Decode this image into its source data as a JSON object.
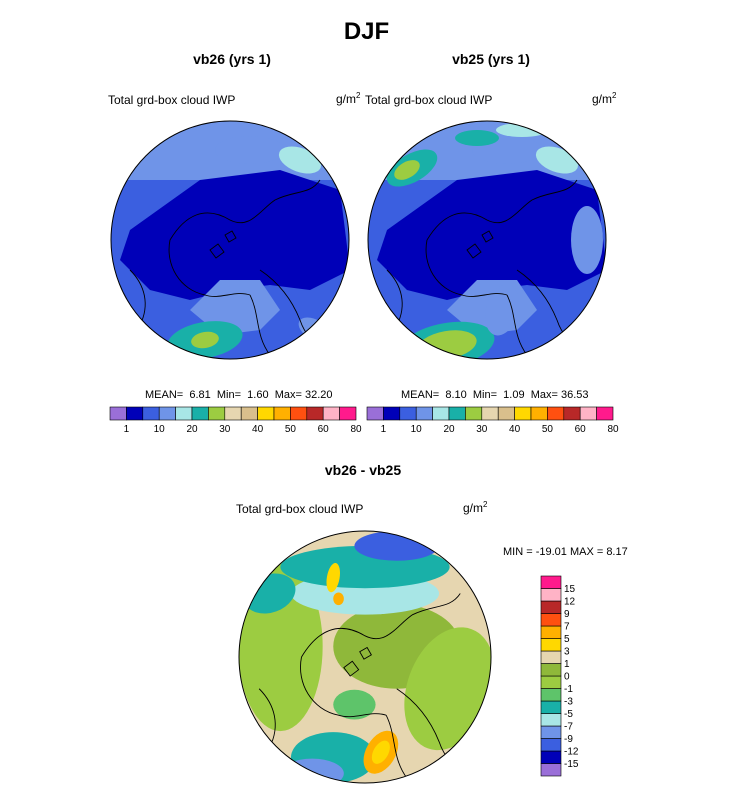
{
  "figure": {
    "title": "DJF",
    "panels": [
      {
        "title": "vb26 (yrs 1)",
        "variable": "Total grd-box cloud IWP",
        "units_base": "g/m",
        "units_exp": "2",
        "stats": {
          "mean_label": "MEAN=",
          "mean": "6.81",
          "min_label": "Min=",
          "min": "1.60",
          "max_label": "Max=",
          "max": "32.20"
        }
      },
      {
        "title": "vb25 (yrs 1)",
        "variable": "Total grd-box cloud IWP",
        "units_base": "g/m",
        "units_exp": "2",
        "stats": {
          "mean_label": "MEAN=",
          "mean": "8.10",
          "min_label": "Min=",
          "min": "1.09",
          "max_label": "Max=",
          "max": "36.53"
        }
      },
      {
        "title": "vb26 - vb25",
        "variable": "Total grd-box cloud IWP",
        "units_base": "g/m",
        "units_exp": "2",
        "stats_text": "MIN = -19.01 MAX =   8.17"
      }
    ],
    "colors": {
      "land_outline": "#000000",
      "abs_scale": [
        "#9a6fd8",
        "#0000b8",
        "#3b5fe0",
        "#6f94e8",
        "#a8e6e6",
        "#19b0a8",
        "#9ccc41",
        "#e6d6b0",
        "#d9bf8c",
        "#ffd800",
        "#ffb000",
        "#ff5010",
        "#b82828",
        "#ffb3c6",
        "#ff1a8c"
      ],
      "diff_scale": [
        "#9a6fd8",
        "#0000b8",
        "#3b5fe0",
        "#6f94e8",
        "#a8e6e6",
        "#19b0a8",
        "#5ec46a",
        "#9ccc41",
        "#8fb83a",
        "#e6d6b0",
        "#ffd800",
        "#ffb000",
        "#ff5010",
        "#b82828",
        "#ffb3c6",
        "#ff1a8c"
      ]
    }
  },
  "chart_data": [
    {
      "type": "heatmap",
      "title": "vb26 (yrs 1)",
      "projection": "north polar stereographic",
      "variable": "Total grd-box cloud IWP",
      "units": "g/m2",
      "mean": 6.81,
      "min": 1.6,
      "max": 32.2,
      "colorbar_levels": [
        1,
        5,
        10,
        15,
        20,
        25,
        30,
        35,
        40,
        45,
        50,
        55,
        60,
        70,
        80
      ],
      "colorbar_ticks": [
        "1",
        "10",
        "20",
        "30",
        "40",
        "50",
        "60",
        "80"
      ]
    },
    {
      "type": "heatmap",
      "title": "vb25 (yrs 1)",
      "projection": "north polar stereographic",
      "variable": "Total grd-box cloud IWP",
      "units": "g/m2",
      "mean": 8.1,
      "min": 1.09,
      "max": 36.53,
      "colorbar_levels": [
        1,
        5,
        10,
        15,
        20,
        25,
        30,
        35,
        40,
        45,
        50,
        55,
        60,
        70,
        80
      ],
      "colorbar_ticks": [
        "1",
        "10",
        "20",
        "30",
        "40",
        "50",
        "60",
        "80"
      ]
    },
    {
      "type": "heatmap",
      "title": "vb26 - vb25",
      "projection": "north polar stereographic",
      "variable": "Total grd-box cloud IWP",
      "units": "g/m2",
      "min": -19.01,
      "max": 8.17,
      "colorbar_levels": [
        -15,
        -12,
        -9,
        -7,
        -5,
        -3,
        -1,
        0,
        1,
        3,
        5,
        7,
        9,
        12,
        15
      ],
      "colorbar_ticks": [
        "15",
        "12",
        "9",
        "7",
        "5",
        "3",
        "1",
        "0",
        "-1",
        "-3",
        "-5",
        "-7",
        "-9",
        "-12",
        "-15"
      ]
    }
  ]
}
